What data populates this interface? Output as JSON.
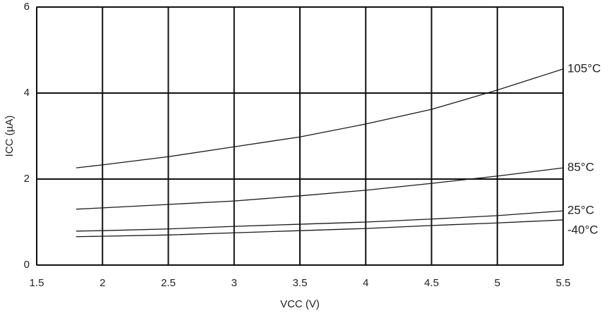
{
  "chart_data": {
    "type": "line",
    "x_label": "VCC (V)",
    "y_label": "ICC (µA)",
    "x": [
      1.8,
      2,
      2.5,
      3,
      3.5,
      4,
      4.5,
      5,
      5.5
    ],
    "series": [
      {
        "name": "105°C",
        "color": "#1a1a1a",
        "values": [
          2.26,
          2.33,
          2.52,
          2.75,
          2.98,
          3.28,
          3.62,
          4.07,
          4.56
        ]
      },
      {
        "name": "85°C",
        "color": "#1a1a1a",
        "values": [
          1.3,
          1.33,
          1.41,
          1.49,
          1.61,
          1.74,
          1.9,
          2.07,
          2.26
        ]
      },
      {
        "name": "25°C",
        "color": "#1a1a1a",
        "values": [
          0.79,
          0.8,
          0.84,
          0.9,
          0.95,
          1.0,
          1.07,
          1.15,
          1.26
        ]
      },
      {
        "name": "-40°C",
        "color": "#1a1a1a",
        "values": [
          0.66,
          0.67,
          0.7,
          0.75,
          0.8,
          0.85,
          0.92,
          0.98,
          1.05
        ]
      }
    ],
    "xlim": [
      1.5,
      5.5
    ],
    "xticks": [
      1.5,
      2,
      2.5,
      3,
      3.5,
      4,
      4.5,
      5,
      5.5
    ],
    "ylim": [
      0,
      6
    ],
    "yticks": [
      0,
      2,
      4,
      6
    ],
    "grid": true,
    "legend": "right"
  }
}
